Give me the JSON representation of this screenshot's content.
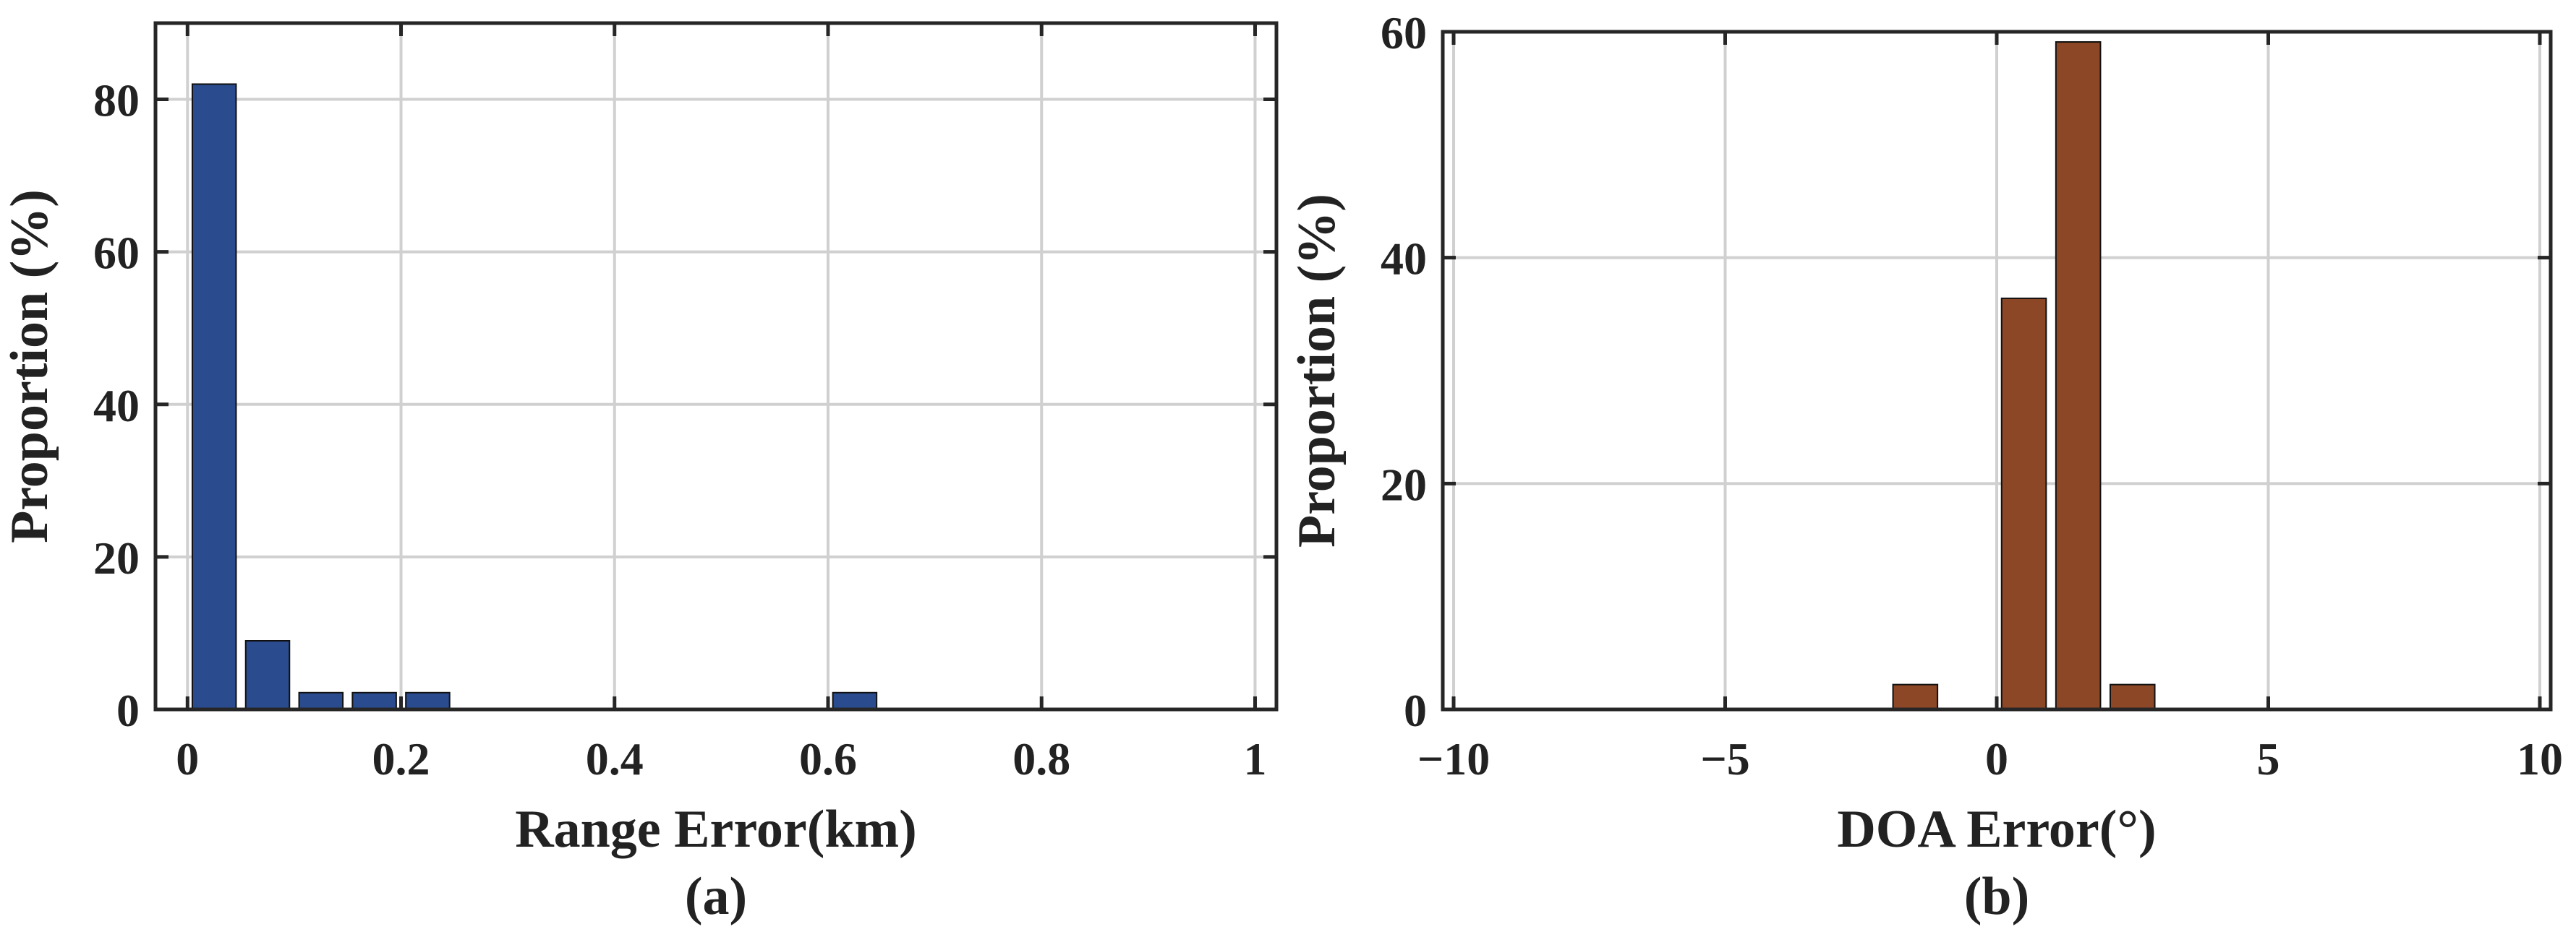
{
  "colors": {
    "panel_a_bar": "#2a4b8d",
    "panel_b_bar": "#8b4726",
    "grid": "#d0d0d0",
    "axis": "#262626"
  },
  "chart_data": [
    {
      "type": "bar",
      "xlabel": "Range Error(km)",
      "ylabel": "Proportion (%)",
      "caption": "(a)",
      "xlim": [
        -0.03,
        1.02
      ],
      "ylim": [
        0,
        90
      ],
      "xticks": [
        0,
        0.2,
        0.4,
        0.6,
        0.8,
        1
      ],
      "xtick_labels": [
        "0",
        "0.2",
        "0.4",
        "0.6",
        "0.8",
        "1"
      ],
      "yticks": [
        0,
        20,
        40,
        60,
        80
      ],
      "ytick_labels": [
        "0",
        "20",
        "40",
        "60",
        "80"
      ],
      "grid": true,
      "bin_width": 0.05,
      "x": [
        0.025,
        0.075,
        0.125,
        0.175,
        0.225,
        0.625
      ],
      "values": [
        82,
        9,
        2.2,
        2.2,
        2.2,
        2.2
      ]
    },
    {
      "type": "bar",
      "xlabel": "DOA Error(°)",
      "ylabel": "Proportion (%)",
      "caption": "(b)",
      "xlim": [
        -10.2,
        10.2
      ],
      "ylim": [
        0,
        60
      ],
      "xticks": [
        -10,
        -5,
        0,
        5,
        10
      ],
      "xtick_labels": [
        "−10",
        "−5",
        "0",
        "5",
        "10"
      ],
      "yticks": [
        0,
        20,
        40,
        60
      ],
      "ytick_labels": [
        "0",
        "20",
        "40",
        "60"
      ],
      "grid": true,
      "bin_width": 1,
      "x": [
        -1.5,
        0.5,
        1.5,
        2.5
      ],
      "values": [
        2.2,
        36.4,
        59.1,
        2.2
      ]
    }
  ]
}
